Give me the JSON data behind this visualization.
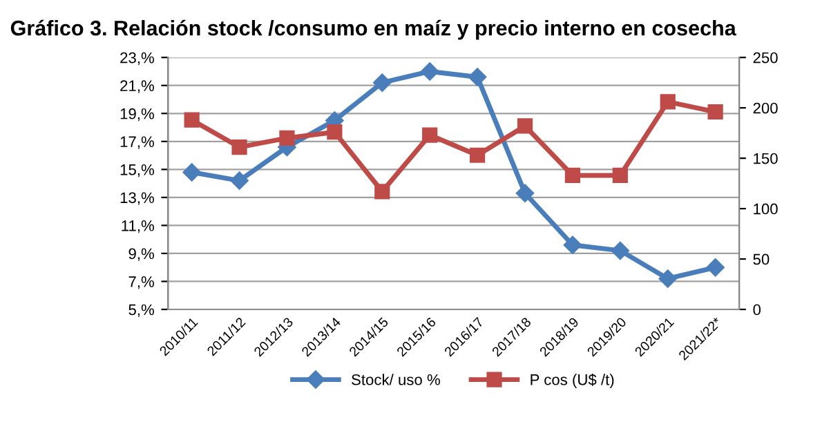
{
  "chart_data": {
    "type": "line",
    "title": "Gráfico 3. Relación stock /consumo en maíz y precio interno en cosecha",
    "categories": [
      "2010/11",
      "2011/12",
      "2012/13",
      "2013/14",
      "2014/15",
      "2015/16",
      "2016/17",
      "2017/18",
      "2018/19",
      "2019/20",
      "2020/21",
      "2021/22*"
    ],
    "series": [
      {
        "name": "Stock/ uso %",
        "color": "#4a7ebb",
        "marker": "diamond",
        "values": [
          14.8,
          14.2,
          16.6,
          18.5,
          21.2,
          22.0,
          21.6,
          13.3,
          9.6,
          9.2,
          7.2,
          8.0
        ]
      },
      {
        "name": "P cos (U$ /t)",
        "color": "#be4b48",
        "marker": "square",
        "axis": "y2",
        "values": [
          188,
          161,
          170,
          176,
          117,
          173,
          153,
          182,
          133,
          133,
          206,
          196
        ]
      }
    ],
    "ylim": [
      5,
      23
    ],
    "yticks": [
      {
        "value": 5,
        "label": "5,%"
      },
      {
        "value": 7,
        "label": "7,%"
      },
      {
        "value": 9,
        "label": "9,%"
      },
      {
        "value": 11,
        "label": "11,%"
      },
      {
        "value": 13,
        "label": "13,%"
      },
      {
        "value": 15,
        "label": "15,%"
      },
      {
        "value": 17,
        "label": "17,%"
      },
      {
        "value": 19,
        "label": "19,%"
      },
      {
        "value": 21,
        "label": "21,%"
      },
      {
        "value": 23,
        "label": "23,%"
      }
    ],
    "y2lim": [
      0,
      250
    ],
    "y2ticks": [
      0,
      50,
      100,
      150,
      200,
      250
    ],
    "grid": "y",
    "legend": "bottom",
    "line_style": "solid"
  }
}
